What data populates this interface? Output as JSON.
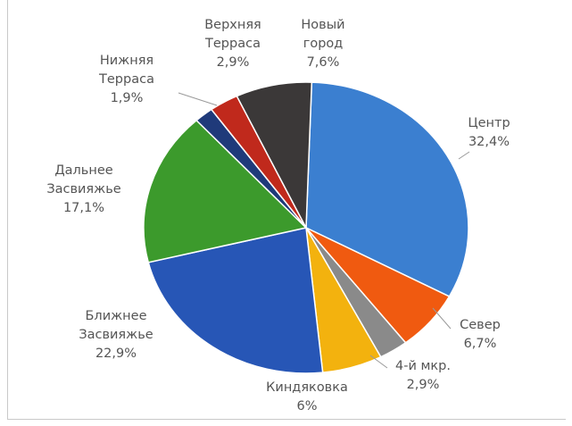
{
  "chart_data": {
    "type": "pie",
    "title": "",
    "slices": [
      {
        "label": [
          "Центр"
        ],
        "value_text": "32,4%",
        "value": 32.4,
        "color": "#3b7fd0"
      },
      {
        "label": [
          "Север"
        ],
        "value_text": "6,7%",
        "value": 6.7,
        "color": "#f05a10"
      },
      {
        "label": [
          "4-й мкр."
        ],
        "value_text": "2,9%",
        "value": 2.9,
        "color": "#8a8a8a"
      },
      {
        "label": [
          "Киндяковка"
        ],
        "value_text": "6%",
        "value": 6.0,
        "color": "#f3b20e"
      },
      {
        "label": [
          "Ближнее",
          "Засвияжье"
        ],
        "value_text": "22,9%",
        "value": 22.9,
        "color": "#2756b6"
      },
      {
        "label": [
          "Дальнее",
          "Засвияжье"
        ],
        "value_text": "17,1%",
        "value": 17.1,
        "color": "#3c9a2c"
      },
      {
        "label": [
          "Нижняя",
          "Терраса"
        ],
        "value_text": "1,9%",
        "value": 1.9,
        "color": "#1f3a7a"
      },
      {
        "label": [
          "Верхняя",
          "Терраса"
        ],
        "value_text": "2,9%",
        "value": 2.9,
        "color": "#c0291c"
      },
      {
        "label": [
          "Новый",
          "город"
        ],
        "value_text": "7,6%",
        "value": 7.6,
        "color": "#3b3838"
      }
    ]
  }
}
